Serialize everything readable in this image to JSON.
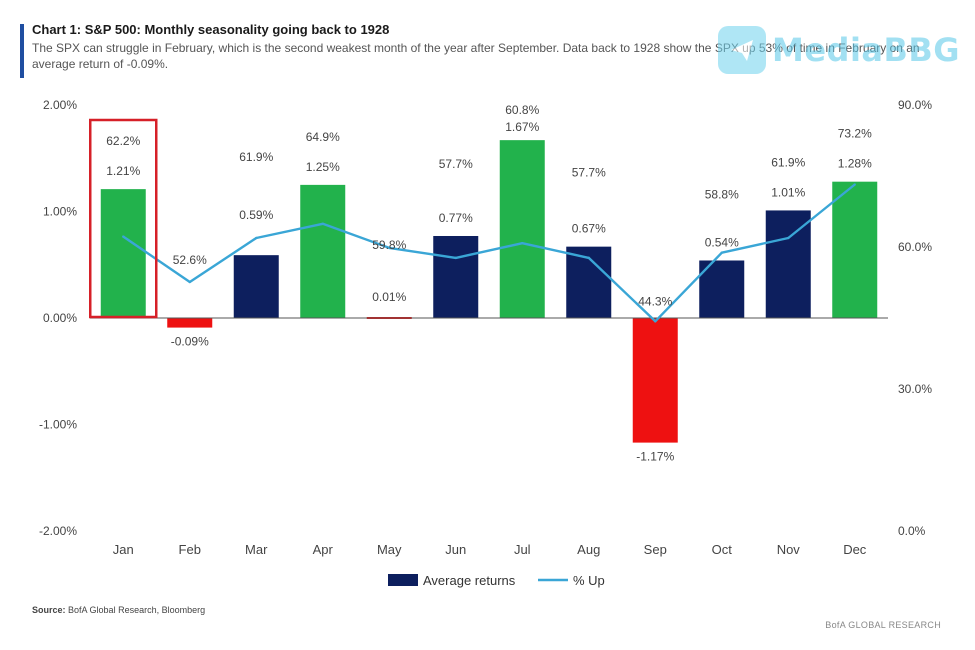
{
  "header": {
    "title": "Chart 1: S&P 500: Monthly seasonality going back to 1928",
    "subtitle": "The SPX can struggle in February, which is the second weakest month of the year after September. Data back to 1928 show the SPX up 53% of time in February on an average return of -0.09%."
  },
  "watermark": {
    "text": "MediaBBG"
  },
  "footer": {
    "source_label": "Source:",
    "source_text": "BofA Global Research, Bloomberg",
    "brand": "BofA GLOBAL RESEARCH"
  },
  "colors": {
    "positive_high": "#22b24c",
    "positive": "#0d1f5e",
    "negative": "#ee1111",
    "line": "#3aa6d6",
    "highlight": "#d62028"
  },
  "chart_data": {
    "type": "bar",
    "title": "Chart 1: S&P 500: Monthly seasonality going back to 1928",
    "categories": [
      "Jan",
      "Feb",
      "Mar",
      "Apr",
      "May",
      "Jun",
      "Jul",
      "Aug",
      "Sep",
      "Oct",
      "Nov",
      "Dec"
    ],
    "series": [
      {
        "name": "Average returns",
        "axis": "left",
        "values": [
          1.21,
          -0.09,
          0.59,
          1.25,
          0.01,
          0.77,
          1.67,
          0.67,
          -1.17,
          0.54,
          1.01,
          1.28
        ],
        "labels": [
          "1.21%",
          "-0.09%",
          "0.59%",
          "1.25%",
          "0.01%",
          "0.77%",
          "1.67%",
          "0.67%",
          "-1.17%",
          "0.54%",
          "1.01%",
          "1.28%"
        ],
        "bar_colors": [
          "positive_high",
          "negative",
          "positive",
          "positive_high",
          "negative",
          "positive",
          "positive_high",
          "positive",
          "negative",
          "positive",
          "positive",
          "positive_high"
        ]
      },
      {
        "name": "% Up",
        "axis": "right",
        "type": "line",
        "values": [
          62.2,
          52.6,
          61.9,
          64.9,
          59.8,
          57.7,
          60.8,
          57.7,
          44.3,
          58.8,
          61.9,
          73.2
        ],
        "labels": [
          "62.2%",
          "52.6%",
          "61.9%",
          "64.9%",
          "59.8%",
          "57.7%",
          "60.8%",
          "57.7%",
          "44.3%",
          "58.8%",
          "61.9%",
          "73.2%"
        ]
      }
    ],
    "y_left": {
      "range": [
        -2.0,
        2.0
      ],
      "ticks": [
        "2.00%",
        "1.00%",
        "0.00%",
        "-1.00%",
        "-2.00%"
      ],
      "tick_values": [
        2,
        1,
        0,
        -1,
        -2
      ]
    },
    "y_right": {
      "range": [
        0,
        90
      ],
      "ticks": [
        "90.0%",
        "60.0%",
        "30.0%",
        "0.0%"
      ],
      "tick_values": [
        90,
        60,
        30,
        0
      ]
    },
    "legend": {
      "position": "bottom",
      "items": [
        "Average returns",
        "% Up"
      ]
    },
    "highlight_category": "Jan",
    "grid": false
  }
}
